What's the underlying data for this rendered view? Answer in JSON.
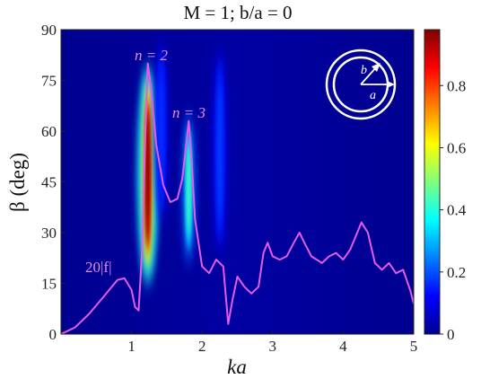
{
  "chart_data": {
    "type": "heatmap",
    "title": "M = 1; b/a = 0",
    "xlabel": "ka",
    "ylabel": "β (deg)",
    "xlim": [
      0,
      5
    ],
    "ylim": [
      0,
      90
    ],
    "xticks": [
      "1",
      "2",
      "3",
      "4",
      "5"
    ],
    "yticks": [
      "0",
      "15",
      "30",
      "45",
      "60",
      "75",
      "90"
    ],
    "colorbar": {
      "range": [
        0,
        0.98
      ],
      "ticks": [
        "0",
        "0.2",
        "0.4",
        "0.6",
        "0.8"
      ],
      "colormap": "jet"
    },
    "heatmap_bands": [
      {
        "ka": 1.23,
        "peak": 0.98,
        "beta_from": 12,
        "beta_to": 82
      },
      {
        "ka": 1.81,
        "peak": 0.32,
        "beta_from": 18,
        "beta_to": 68
      },
      {
        "ka": 2.25,
        "peak": 0.06,
        "beta_from": 20,
        "beta_to": 88
      },
      {
        "ka": 1.42,
        "peak": 0.05,
        "beta_from": 30,
        "beta_to": 90
      }
    ],
    "series": [
      {
        "name": "20|f|",
        "x": [
          0,
          0.2,
          0.4,
          0.6,
          0.8,
          0.9,
          1.0,
          1.05,
          1.1,
          1.15,
          1.2,
          1.23,
          1.28,
          1.35,
          1.45,
          1.55,
          1.65,
          1.72,
          1.78,
          1.81,
          1.85,
          1.9,
          2.0,
          2.1,
          2.2,
          2.3,
          2.37,
          2.43,
          2.5,
          2.6,
          2.7,
          2.8,
          2.87,
          2.93,
          3.0,
          3.1,
          3.2,
          3.3,
          3.38,
          3.45,
          3.55,
          3.7,
          3.8,
          3.9,
          4.0,
          4.1,
          4.2,
          4.26,
          4.35,
          4.45,
          4.55,
          4.65,
          4.75,
          4.85,
          4.95,
          5.0
        ],
        "y": [
          0,
          2,
          6,
          11,
          16,
          16.5,
          13,
          8,
          7,
          25,
          62,
          80,
          72,
          56,
          44,
          39,
          40,
          46,
          57,
          63,
          52,
          34,
          20,
          18,
          22,
          20,
          3,
          10,
          17,
          14,
          12,
          14,
          24,
          27,
          23,
          22,
          23,
          27,
          30,
          27,
          23,
          21,
          23,
          24,
          22,
          25,
          30,
          33,
          30,
          21,
          19,
          21,
          18,
          19,
          13,
          9
        ]
      }
    ],
    "annotations": [
      "n = 2",
      "n = 3",
      "20|f|"
    ],
    "inset_labels": [
      "b",
      "a"
    ],
    "curve_color": "#e55be8"
  }
}
